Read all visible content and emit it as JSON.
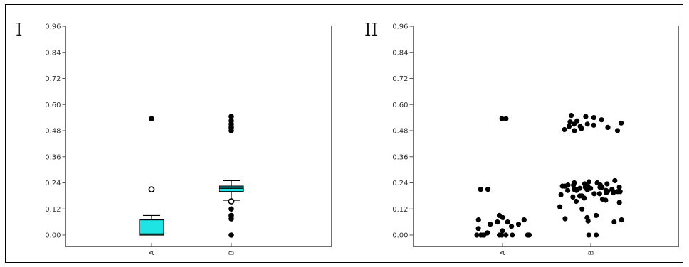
{
  "chart_data": [
    {
      "panel_label": "I",
      "type": "box",
      "categories": [
        "A",
        "B"
      ],
      "ylim": [
        -0.04,
        0.96
      ],
      "yticks": [
        "0.96",
        "0.84",
        "0.72",
        "0.60",
        "0.48",
        "0.36",
        "0.24",
        "0.12",
        "0.00"
      ],
      "box_color": "#1fe4e4",
      "boxes": [
        {
          "category": "A",
          "q1": 0.0,
          "median": 0.005,
          "q3": 0.07,
          "whisker_low": 0.0,
          "whisker_high": 0.09,
          "outliers": [
            0.21
          ],
          "extremes": [
            0.535
          ]
        },
        {
          "category": "B",
          "q1": 0.2,
          "median": 0.215,
          "q3": 0.225,
          "whisker_low": 0.16,
          "whisker_high": 0.25,
          "outliers": [
            0.155
          ],
          "extremes": [
            0.545,
            0.525,
            0.51,
            0.495,
            0.48,
            0.12,
            0.09,
            0.075,
            0.0
          ]
        }
      ]
    },
    {
      "panel_label": "II",
      "type": "scatter",
      "categories": [
        "A",
        "B"
      ],
      "ylim": [
        -0.04,
        0.96
      ],
      "yticks": [
        "0.96",
        "0.84",
        "0.72",
        "0.60",
        "0.48",
        "0.36",
        "0.24",
        "0.12",
        "0.00"
      ],
      "point_color": "#000000",
      "points": {
        "A": [
          0.535,
          0.535,
          0.21,
          0.21,
          0.09,
          0.08,
          0.07,
          0.07,
          0.06,
          0.06,
          0.05,
          0.05,
          0.04,
          0.03,
          0.02,
          0.01,
          0.0,
          0.0,
          0.0,
          0.0,
          0.0,
          0.0,
          0.0,
          0.0,
          0.0,
          0.0,
          0.0
        ],
        "B": [
          0.55,
          0.545,
          0.54,
          0.53,
          0.525,
          0.52,
          0.515,
          0.51,
          0.51,
          0.505,
          0.5,
          0.5,
          0.495,
          0.49,
          0.49,
          0.485,
          0.48,
          0.48,
          0.25,
          0.245,
          0.24,
          0.24,
          0.235,
          0.235,
          0.23,
          0.23,
          0.23,
          0.225,
          0.225,
          0.225,
          0.22,
          0.22,
          0.22,
          0.22,
          0.215,
          0.215,
          0.215,
          0.215,
          0.21,
          0.21,
          0.21,
          0.21,
          0.21,
          0.205,
          0.205,
          0.205,
          0.2,
          0.2,
          0.2,
          0.2,
          0.195,
          0.195,
          0.19,
          0.19,
          0.185,
          0.18,
          0.18,
          0.175,
          0.17,
          0.165,
          0.16,
          0.155,
          0.15,
          0.13,
          0.12,
          0.09,
          0.08,
          0.075,
          0.07,
          0.065,
          0.06,
          0.0,
          0.0
        ]
      }
    }
  ]
}
